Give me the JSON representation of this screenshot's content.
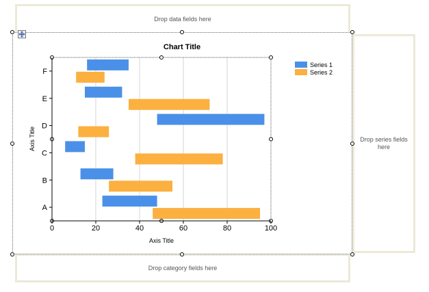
{
  "drop_zones": {
    "data": "Drop data fields here",
    "series": "Drop series fields here",
    "category": "Drop category fields here"
  },
  "colors": {
    "series1": "#4a90e8",
    "series2": "#fbb040"
  },
  "icons": {
    "move": "move-handle-icon"
  },
  "chart_data": {
    "type": "bar",
    "orientation": "horizontal",
    "subtype": "range",
    "title": "Chart Title",
    "xlabel": "Axis Title",
    "ylabel": "Axis Title",
    "categories": [
      "A",
      "B",
      "C",
      "D",
      "E",
      "F"
    ],
    "xlim": [
      0,
      100
    ],
    "xticks": [
      "0",
      "20",
      "40",
      "60",
      "80",
      "100"
    ],
    "grid": true,
    "legend_position": "top-right",
    "series": [
      {
        "name": "Series 1",
        "color": "#4a90e8",
        "ranges": [
          [
            23,
            48
          ],
          [
            13,
            28
          ],
          [
            6,
            15
          ],
          [
            48,
            97
          ],
          [
            15,
            32
          ],
          [
            16,
            35
          ]
        ]
      },
      {
        "name": "Series 2",
        "color": "#fbb040",
        "ranges": [
          [
            46,
            95
          ],
          [
            26,
            55
          ],
          [
            38,
            78
          ],
          [
            12,
            26
          ],
          [
            35,
            72
          ],
          [
            11,
            24
          ]
        ]
      }
    ]
  }
}
